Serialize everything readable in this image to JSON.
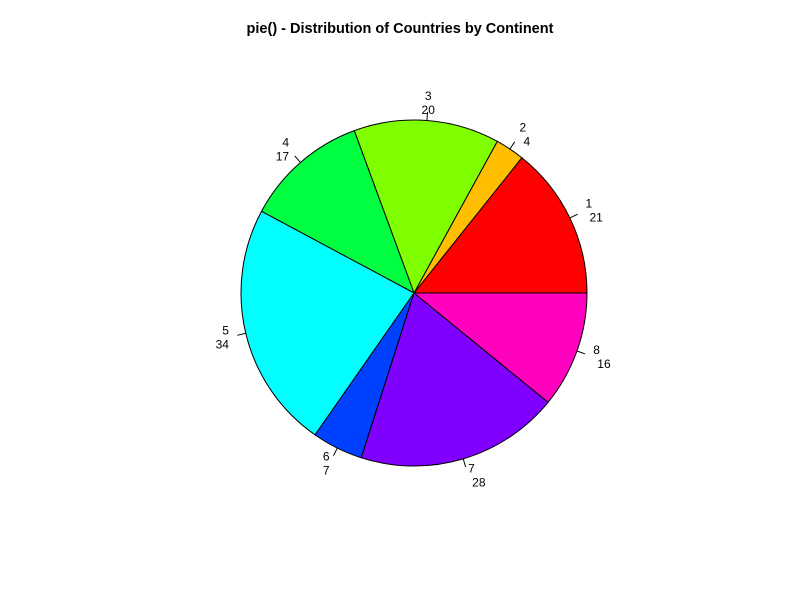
{
  "chart_data": {
    "type": "pie",
    "title": "pie() - Distribution of Countries by Continent",
    "slices": [
      {
        "label": "1",
        "value": 21,
        "color": "#FF0000"
      },
      {
        "label": "2",
        "value": 4,
        "color": "#FFBF00"
      },
      {
        "label": "3",
        "value": 20,
        "color": "#80FF00"
      },
      {
        "label": "4",
        "value": 17,
        "color": "#00FF40"
      },
      {
        "label": "5",
        "value": 34,
        "color": "#00FFFF"
      },
      {
        "label": "6",
        "value": 7,
        "color": "#0040FF"
      },
      {
        "label": "7",
        "value": 28,
        "color": "#8000FF"
      },
      {
        "label": "8",
        "value": 16,
        "color": "#FF00BF"
      }
    ],
    "direction": "counterclockwise",
    "start": "3 o'clock"
  }
}
